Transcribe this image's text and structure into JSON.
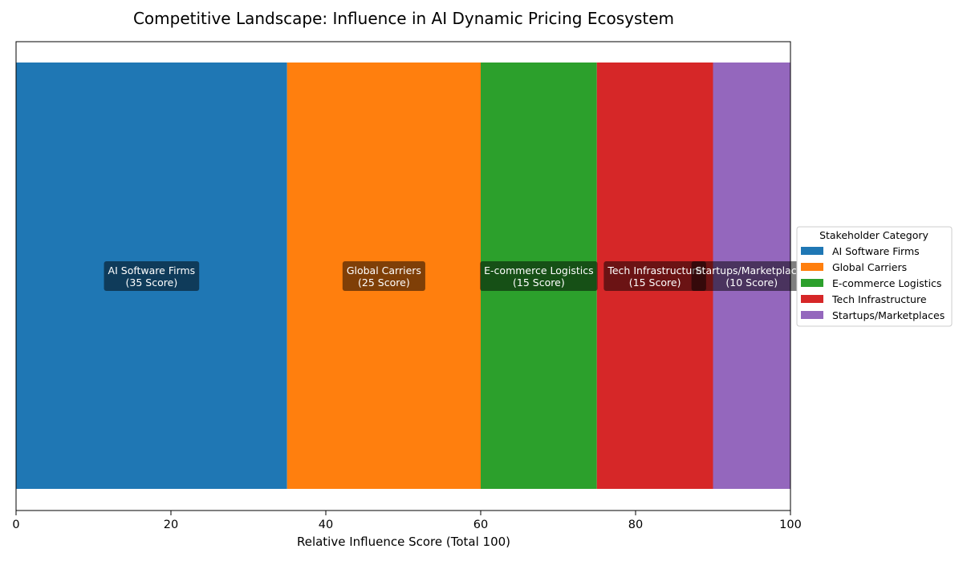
{
  "chart_data": {
    "type": "bar",
    "orientation": "horizontal-stacked",
    "title": "Competitive Landscape: Influence in AI Dynamic Pricing Ecosystem",
    "xlabel": "Relative Influence Score (Total 100)",
    "ylabel": "",
    "xlim": [
      0,
      100
    ],
    "xticks": [
      0,
      20,
      40,
      60,
      80,
      100
    ],
    "grid": false,
    "legend": {
      "title": "Stakeholder Category",
      "placement": "right"
    },
    "series": [
      {
        "name": "AI Software Firms",
        "value": 35,
        "color": "#1f77b4",
        "label_line1": "AI Software Firms",
        "label_line2": "(35 Score)"
      },
      {
        "name": "Global Carriers",
        "value": 25,
        "color": "#ff7f0e",
        "label_line1": "Global Carriers",
        "label_line2": "(25 Score)"
      },
      {
        "name": "E-commerce Logistics",
        "value": 15,
        "color": "#2ca02c",
        "label_line1": "E-commerce Logistics",
        "label_line2": "(15 Score)"
      },
      {
        "name": "Tech Infrastructure",
        "value": 15,
        "color": "#d62728",
        "label_line1": "Tech Infrastructure",
        "label_line2": "(15 Score)"
      },
      {
        "name": "Startups/Marketplaces",
        "value": 10,
        "color": "#9467bd",
        "label_line1": "Startups/Marketplaces",
        "label_line2": "(10 Score)"
      }
    ]
  }
}
